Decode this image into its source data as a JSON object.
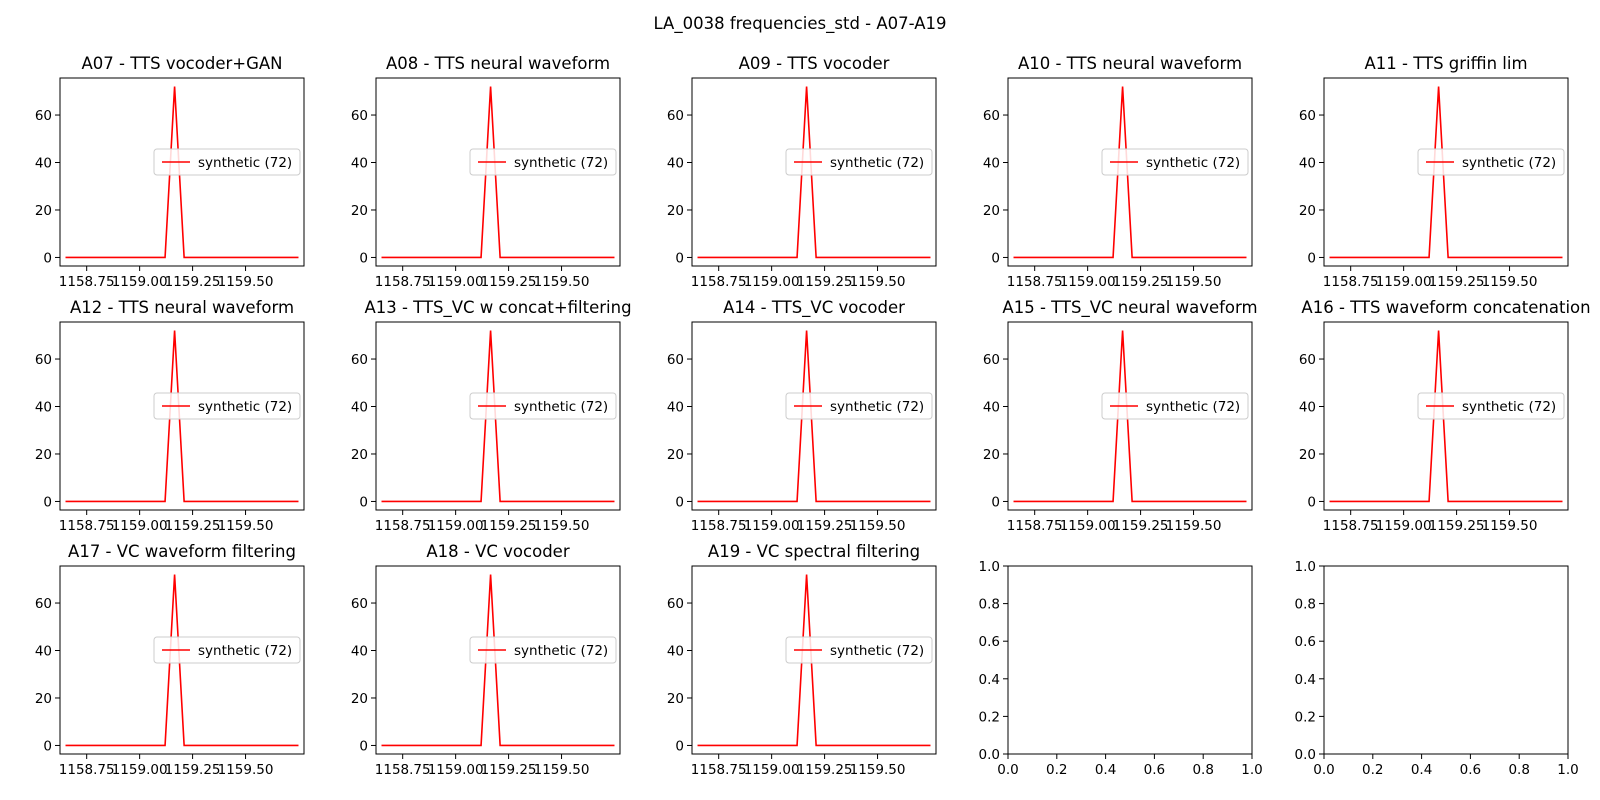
{
  "figure": {
    "suptitle": "LA_0038 frequencies_std - A07-A19"
  },
  "chart_data": {
    "type": "line",
    "series_color": "#ff0000",
    "panels": [
      {
        "title": "A07 - TTS vocoder+GAN",
        "legend": "synthetic (72)",
        "legend_position": "center-right"
      },
      {
        "title": "A08 - TTS neural waveform",
        "legend": "synthetic (72)",
        "legend_position": "center-right"
      },
      {
        "title": "A09 - TTS vocoder",
        "legend": "synthetic (72)",
        "legend_position": "center-right"
      },
      {
        "title": "A10 - TTS neural waveform",
        "legend": "synthetic (72)",
        "legend_position": "center-right"
      },
      {
        "title": "A11 - TTS griffin lim",
        "legend": "synthetic (72)",
        "legend_position": "center-right"
      },
      {
        "title": "A12 - TTS neural waveform",
        "legend": "synthetic (72)",
        "legend_position": "center-right"
      },
      {
        "title": "A13 - TTS_VC w concat+filtering",
        "legend": "synthetic (72)",
        "legend_position": "center-right"
      },
      {
        "title": "A14 - TTS_VC vocoder",
        "legend": "synthetic (72)",
        "legend_position": "center-right"
      },
      {
        "title": "A15 - TTS_VC neural waveform",
        "legend": "synthetic (72)",
        "legend_position": "center-right"
      },
      {
        "title": "A16 - TTS waveform concatenation",
        "legend": "synthetic (72)",
        "legend_position": "center-right"
      },
      {
        "title": "A17 - VC waveform filtering",
        "legend": "synthetic (72)",
        "legend_position": "center-right"
      },
      {
        "title": "A18 - VC vocoder",
        "legend": "synthetic (72)",
        "legend_position": "center-right"
      },
      {
        "title": "A19 - VC spectral filtering",
        "legend": "synthetic (72)",
        "legend_position": "center-right"
      }
    ],
    "x": [
      1158.65,
      1159.12,
      1159.165,
      1159.21,
      1159.75
    ],
    "y": [
      0,
      0,
      72,
      0,
      0
    ],
    "xlim": [
      1158.624,
      1159.776
    ],
    "ylim": [
      -3.6,
      75.6
    ],
    "xticks": [
      1158.75,
      1159.0,
      1159.25,
      1159.5
    ],
    "xtick_labels": [
      "1158.75",
      "1159.00",
      "1159.25",
      "1159.50"
    ],
    "yticks": [
      0,
      20,
      40,
      60
    ],
    "ytick_labels": [
      "0",
      "20",
      "40",
      "60"
    ],
    "empty_axes": {
      "count": 2,
      "xlim": [
        0,
        1
      ],
      "ylim": [
        0,
        1
      ],
      "ticks": [
        0.0,
        0.2,
        0.4,
        0.6,
        0.8,
        1.0
      ],
      "xtick_labels": [
        "0.0",
        "0.2",
        "0.4",
        "0.6",
        "0.8",
        "1.0"
      ],
      "ytick_labels": [
        "0.0",
        "0.2",
        "0.4",
        "0.6",
        "0.8",
        "1.0"
      ]
    },
    "grid": false
  }
}
